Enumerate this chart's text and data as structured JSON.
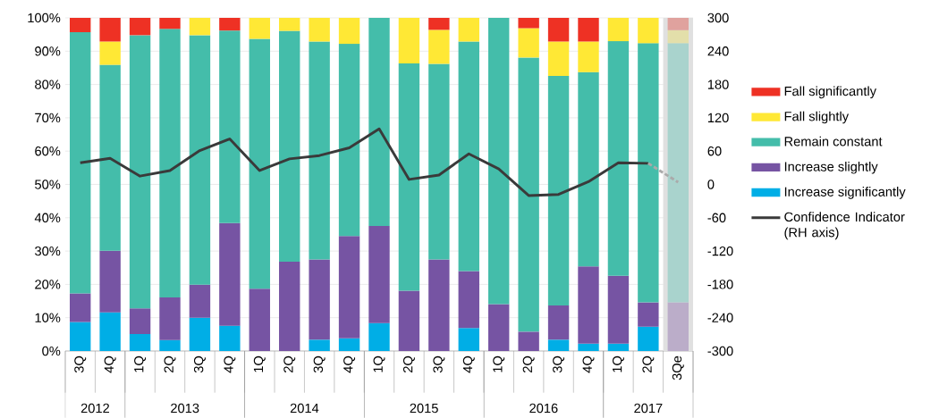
{
  "chart_data": {
    "type": "bar",
    "stacked": true,
    "categories": [
      "3Q",
      "4Q",
      "1Q",
      "2Q",
      "3Q",
      "4Q",
      "1Q",
      "2Q",
      "3Q",
      "4Q",
      "1Q",
      "2Q",
      "3Q",
      "4Q",
      "1Q",
      "2Q",
      "3Q",
      "4Q",
      "1Q",
      "2Q",
      "3Qe"
    ],
    "annotations": [
      "2012",
      "2013",
      "2014",
      "2015",
      "2016",
      "2017"
    ],
    "series": [
      {
        "name": "Increase significantly",
        "color": "#00aee6",
        "colors": [
          "#00aee6",
          "#00aee6",
          "#00aee6",
          "#00aee6",
          "#00aee6",
          "#00aee6",
          "#00aee6",
          "#00aee6",
          "#00aee6",
          "#00aee6",
          "#00aee6",
          "#00aee6",
          "#00aee6",
          "#00aee6",
          "#00aee6",
          "#00aee6",
          "#00aee6",
          "#00aee6",
          "#00aee6",
          "#00aee6",
          "#9fd3e6"
        ],
        "values": [
          8.7,
          11.6,
          5.1,
          3.3,
          10.0,
          7.6,
          0,
          0,
          3.4,
          3.8,
          8.4,
          0,
          0,
          6.9,
          0,
          0,
          3.4,
          2.2,
          2.2,
          7.3,
          0
        ]
      },
      {
        "name": "Increase slightly",
        "color": "#7654a3",
        "colors": [
          "#7654a3",
          "#7654a3",
          "#7654a3",
          "#7654a3",
          "#7654a3",
          "#7654a3",
          "#7654a3",
          "#7654a3",
          "#7654a3",
          "#7654a3",
          "#7654a3",
          "#7654a3",
          "#7654a3",
          "#7654a3",
          "#7654a3",
          "#7654a3",
          "#7654a3",
          "#7654a3",
          "#7654a3",
          "#7654a3",
          "#bbadc9"
        ],
        "values": [
          8.6,
          18.5,
          7.7,
          12.8,
          9.9,
          30.8,
          18.7,
          26.8,
          24.1,
          30.7,
          29.1,
          18.1,
          27.5,
          17.1,
          14.1,
          5.8,
          10.3,
          23.2,
          20.4,
          7.3,
          14.6
        ]
      },
      {
        "name": "Remain constant",
        "color": "#44bdaa",
        "colors": [
          "#44bdaa",
          "#44bdaa",
          "#44bdaa",
          "#44bdaa",
          "#44bdaa",
          "#44bdaa",
          "#44bdaa",
          "#44bdaa",
          "#44bdaa",
          "#44bdaa",
          "#44bdaa",
          "#44bdaa",
          "#44bdaa",
          "#44bdaa",
          "#44bdaa",
          "#44bdaa",
          "#44bdaa",
          "#44bdaa",
          "#44bdaa",
          "#44bdaa",
          "#a9d3cd"
        ],
        "values": [
          78.4,
          55.8,
          82.0,
          80.6,
          74.9,
          57.8,
          75.0,
          69.3,
          65.4,
          57.7,
          62.5,
          68.2,
          58.7,
          68.9,
          85.9,
          82.3,
          68.9,
          58.3,
          70.4,
          77.8,
          77.8
        ]
      },
      {
        "name": "Fall slightly",
        "color": "#ffe835",
        "colors": [
          "#ffe835",
          "#ffe835",
          "#ffe835",
          "#ffe835",
          "#ffe835",
          "#ffe835",
          "#ffe835",
          "#ffe835",
          "#ffe835",
          "#ffe835",
          "#ffe835",
          "#ffe835",
          "#ffe835",
          "#ffe835",
          "#ffe835",
          "#ffe835",
          "#ffe835",
          "#ffe835",
          "#ffe835",
          "#ffe835",
          "#e3dfaa"
        ],
        "values": [
          0,
          7.0,
          0,
          0,
          5.2,
          0,
          6.3,
          3.9,
          7.1,
          7.8,
          0,
          13.7,
          10.2,
          7.1,
          0,
          8.8,
          10.3,
          9.2,
          7.0,
          7.6,
          3.9
        ]
      },
      {
        "name": "Fall significantly",
        "color": "#ee3124",
        "colors": [
          "#ee3124",
          "#ee3124",
          "#ee3124",
          "#ee3124",
          "#ee3124",
          "#ee3124",
          "#ee3124",
          "#ee3124",
          "#ee3124",
          "#ee3124",
          "#ee3124",
          "#ee3124",
          "#ee3124",
          "#ee3124",
          "#ee3124",
          "#ee3124",
          "#ee3124",
          "#ee3124",
          "#ee3124",
          "#ee3124",
          "#e0a29e"
        ],
        "values": [
          4.3,
          7.1,
          5.2,
          3.3,
          0,
          3.8,
          0,
          0,
          0,
          0,
          0,
          0,
          3.6,
          0,
          0,
          3.1,
          7.1,
          7.1,
          0,
          0,
          3.7
        ]
      },
      {
        "name": "Confidence Indicator (RH axis)",
        "type": "line",
        "axis": "y2",
        "color": "#3a3a3a",
        "line_style": "solid",
        "values": [
          39,
          47,
          15,
          25,
          61,
          82,
          25,
          46,
          52,
          66,
          100,
          9,
          17,
          55,
          28,
          -20,
          -18,
          5,
          39,
          38,
          null
        ]
      },
      {
        "type": "line",
        "axis": "y2",
        "color": "#aaaaaa",
        "line_style": "dashed",
        "values": [
          null,
          null,
          null,
          null,
          null,
          null,
          null,
          null,
          null,
          null,
          null,
          null,
          null,
          null,
          null,
          null,
          null,
          null,
          null,
          38,
          4
        ]
      }
    ],
    "ylim": [
      0,
      100
    ],
    "yticks": [
      {
        "value": 0,
        "label": "0%"
      },
      {
        "value": 10,
        "label": "10%"
      },
      {
        "value": 20,
        "label": "20%"
      },
      {
        "value": 30,
        "label": "30%"
      },
      {
        "value": 40,
        "label": "40%"
      },
      {
        "value": 50,
        "label": "50%"
      },
      {
        "value": 60,
        "label": "60%"
      },
      {
        "value": 70,
        "label": "70%"
      },
      {
        "value": 80,
        "label": "80%"
      },
      {
        "value": 90,
        "label": "90%"
      },
      {
        "value": 100,
        "label": "100%"
      }
    ],
    "y2lim": [
      -300,
      300
    ],
    "y2ticks": [
      -300,
      -240,
      -180,
      -120,
      -60,
      0,
      60,
      120,
      180,
      240,
      300
    ],
    "bands": [
      {
        "axis": "x",
        "from": "3Qe",
        "to": "3Qe",
        "color": "#e0e0e0"
      }
    ],
    "grid": "y",
    "legend": "right"
  }
}
